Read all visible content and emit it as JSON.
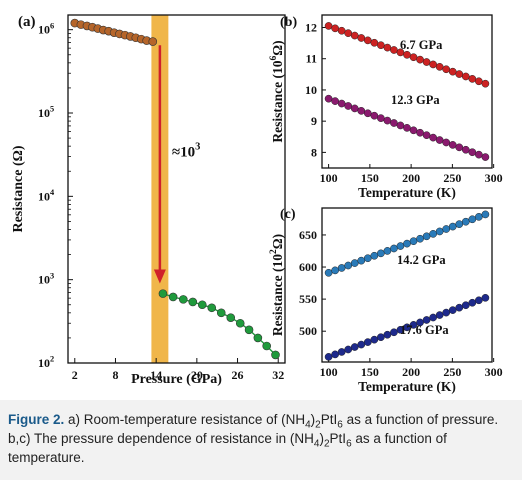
{
  "caption": {
    "label": "Figure 2.",
    "p1": " a) Room-temperature resistance of (NH",
    "p2": ")",
    "p3": "PtI",
    "p4": " as a function of pressure. b,c) The pressure dependence of resistance in (NH",
    "p5": ")",
    "p6": "PtI",
    "p7": " as a function of temperature.",
    "sub4": "4",
    "sub2": "2",
    "sub6": "6"
  },
  "colors": {
    "orange_series": "#b5652a",
    "green_series": "#1f9a3c",
    "highlight_band": "#f0b64a",
    "arrow": "#d0202a",
    "red_series": "#cc2222",
    "purple_series": "#8a1a6e",
    "blue_series": "#2a7ab8",
    "navy_series": "#1e2a8c"
  },
  "chart_data": [
    {
      "panel": "(a)",
      "type": "scatter",
      "xlabel": "Pressure (GPa)",
      "ylabel": "Resistance (Ω)",
      "y_scale": "log",
      "xlim": [
        1,
        33
      ],
      "ylim": [
        100,
        1500000
      ],
      "xticks": [
        "2",
        "8",
        "14",
        "20",
        "26",
        "32"
      ],
      "yticks": [
        {
          "base": "10",
          "exp": "2",
          "value": 100
        },
        {
          "base": "10",
          "exp": "3",
          "value": 1000
        },
        {
          "base": "10",
          "exp": "4",
          "value": 10000
        },
        {
          "base": "10",
          "exp": "5",
          "value": 100000
        },
        {
          "base": "10",
          "exp": "6",
          "value": 1000000
        }
      ],
      "band": [
        13.3,
        15.8
      ],
      "annotation": {
        "text": "≈10",
        "exp": "3",
        "arrow_from": 650000,
        "arrow_to": 900
      },
      "series": [
        {
          "x": [
            2.0,
            2.9,
            3.8,
            4.6,
            5.4,
            6.2,
            7.0,
            7.8,
            8.6,
            9.4,
            10.2,
            11.0,
            11.8,
            12.6,
            13.5
          ],
          "y": [
            1200000,
            1150000,
            1110000,
            1070000,
            1030000,
            990000,
            960000,
            920000,
            890000,
            860000,
            830000,
            800000,
            770000,
            740000,
            720000
          ]
        },
        {
          "x": [
            15.0,
            16.5,
            18.0,
            19.4,
            20.8,
            22.2,
            23.6,
            25.0,
            26.4,
            27.7,
            29.0,
            30.3,
            31.6
          ],
          "y": [
            680,
            620,
            580,
            540,
            500,
            460,
            400,
            350,
            300,
            250,
            200,
            160,
            125
          ]
        }
      ]
    },
    {
      "panel": "(b)",
      "type": "line",
      "xlabel": "Temperature (K)",
      "ylabel_pre": "Resistance (10",
      "ylabel_exp": "6",
      "ylabel_post": "Ω)",
      "xlim": [
        92,
        298
      ],
      "ylim": [
        7.5,
        12.4
      ],
      "xticks": [
        "100",
        "150",
        "200",
        "250",
        "300"
      ],
      "yticks": [
        "8",
        "9",
        "10",
        "11",
        "12"
      ],
      "series": [
        {
          "name": "6.7 GPa",
          "x": [
            100,
            290
          ],
          "y": [
            12.05,
            10.2
          ]
        },
        {
          "name": "12.3 GPa",
          "x": [
            100,
            290
          ],
          "y": [
            9.72,
            7.85
          ]
        }
      ]
    },
    {
      "panel": "(c)",
      "type": "line",
      "xlabel": "Temperature (K)",
      "ylabel_pre": "Resistance (10",
      "ylabel_exp": "2",
      "ylabel_post": "Ω)",
      "xlim": [
        92,
        298
      ],
      "ylim": [
        452,
        692
      ],
      "xticks": [
        "100",
        "150",
        "200",
        "250",
        "300"
      ],
      "yticks": [
        "500",
        "550",
        "600",
        "650"
      ],
      "series": [
        {
          "name": "14.2 GPa",
          "x": [
            100,
            290
          ],
          "y": [
            591,
            682
          ]
        },
        {
          "name": "17.6 GPa",
          "x": [
            100,
            290
          ],
          "y": [
            460,
            552
          ]
        }
      ]
    }
  ]
}
